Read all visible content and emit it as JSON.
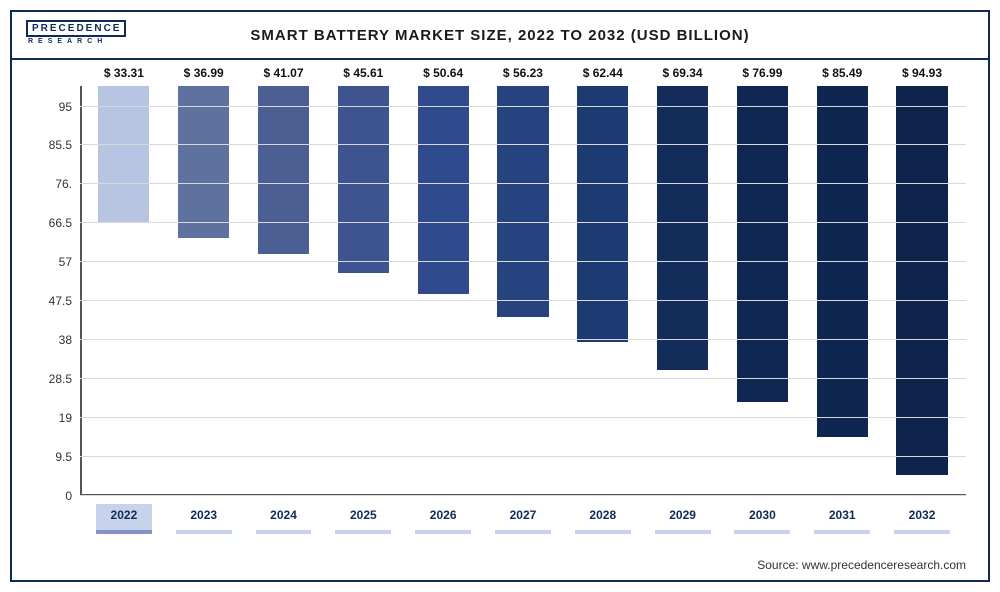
{
  "logo": {
    "line1": "PRECEDENCE",
    "line2": "RESEARCH"
  },
  "title": "SMART BATTERY MARKET SIZE, 2022 TO 2032 (USD BILLION)",
  "source": "Source: www.precedenceresearch.com",
  "chart": {
    "type": "bar",
    "ylim": [
      0,
      100
    ],
    "ytick_step": 9.5,
    "yticks": [
      0,
      9.5,
      19,
      28.5,
      38,
      47.5,
      57,
      66.5,
      76,
      85.5,
      95
    ],
    "ytick_labels": [
      "0",
      "9.5",
      "19",
      "28.5",
      "38",
      "47.5",
      "57",
      "66.5",
      "76.",
      "85.5",
      "95"
    ],
    "grid_color": "#d9d9d9",
    "background_color": "#ffffff",
    "axis_color": "#555555",
    "label_fontsize": 12,
    "title_fontsize": 15,
    "bar_width": 0.64,
    "categories": [
      "2022",
      "2023",
      "2024",
      "2025",
      "2026",
      "2027",
      "2028",
      "2029",
      "2030",
      "2031",
      "2032"
    ],
    "values": [
      33.31,
      36.99,
      41.07,
      45.61,
      50.64,
      56.23,
      62.44,
      69.34,
      76.99,
      85.49,
      94.93
    ],
    "value_labels": [
      "$ 33.31",
      "$ 36.99",
      "$ 41.07",
      "$ 45.61",
      "$ 50.64",
      "$ 56.23",
      "$ 62.44",
      "$ 69.34",
      "$ 76.99",
      "$ 85.49",
      "$ 94.93"
    ],
    "bar_colors": [
      "#b7c4e2",
      "#5e719f",
      "#4b5f93",
      "#3e5490",
      "#2f4a8d",
      "#26427f",
      "#1e3a73",
      "#132c5a",
      "#102753",
      "#0f2650",
      "#0e244d"
    ],
    "highlight_index": 0,
    "xcell_border_color": "#c7d3ea",
    "xcell_highlight_bg": "#c7d3ea",
    "xcell_highlight_border": "#7f94c2"
  }
}
